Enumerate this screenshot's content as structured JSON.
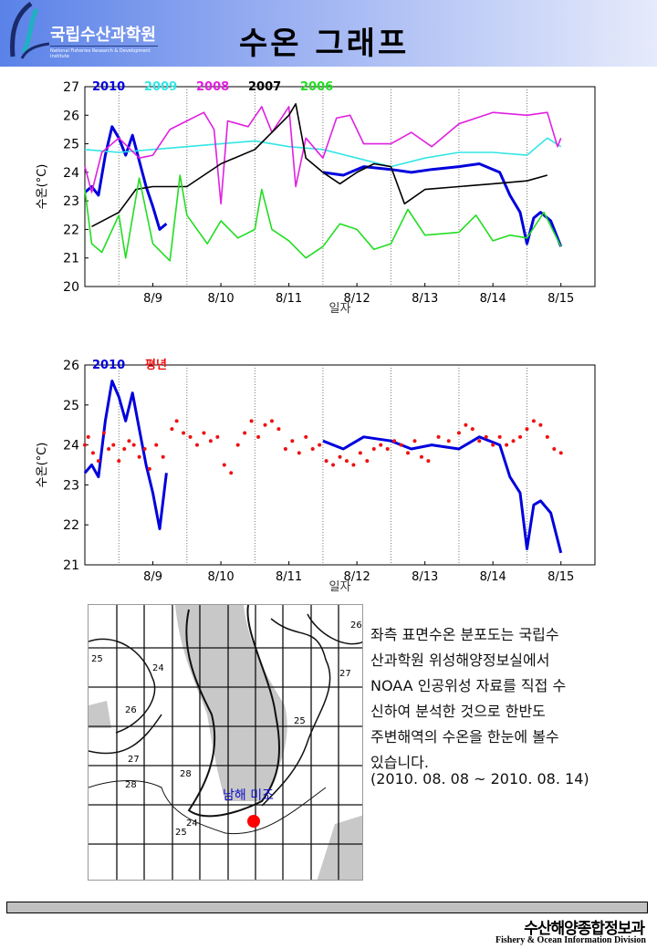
{
  "header": {
    "logo_kr": "국립수산과학원",
    "logo_en": "National Fisheries Research & Development Institute",
    "title": "수온 그래프"
  },
  "chart_data": [
    {
      "type": "line",
      "xlabel": "일자",
      "ylabel": "수온(°C)",
      "ylim": [
        20,
        27
      ],
      "yticks": [
        20,
        21,
        22,
        23,
        24,
        25,
        26,
        27
      ],
      "xticks": [
        "8/9",
        "8/10",
        "8/11",
        "8/12",
        "8/13",
        "8/14",
        "8/15"
      ],
      "grid": "vertical dotted at day boundaries",
      "legend": "top-left",
      "series": [
        {
          "name": "2010",
          "color": "#0000dd",
          "points": [
            [
              8.5,
              23.3
            ],
            [
              8.6,
              23.5
            ],
            [
              8.7,
              23.2
            ],
            [
              8.8,
              24.6
            ],
            [
              8.9,
              25.6
            ],
            [
              9.0,
              25.2
            ],
            [
              9.1,
              24.6
            ],
            [
              9.2,
              25.3
            ],
            [
              9.3,
              24.4
            ],
            [
              9.4,
              23.5
            ],
            [
              9.5,
              22.8
            ],
            [
              9.6,
              22.0
            ],
            [
              9.7,
              22.2
            ],
            null,
            [
              12.0,
              24.0
            ],
            [
              12.3,
              23.9
            ],
            [
              12.6,
              24.2
            ],
            [
              13.0,
              24.1
            ],
            [
              13.3,
              24.0
            ],
            [
              13.6,
              24.1
            ],
            [
              14.0,
              24.2
            ],
            [
              14.3,
              24.3
            ],
            [
              14.6,
              24.0
            ],
            [
              14.75,
              23.2
            ],
            [
              14.9,
              22.6
            ],
            [
              15.0,
              21.5
            ],
            [
              15.1,
              22.4
            ],
            [
              15.2,
              22.6
            ],
            [
              15.35,
              22.3
            ],
            [
              15.5,
              21.4
            ]
          ]
        },
        {
          "name": "2009",
          "color": "#33e5e5",
          "points": [
            [
              8.5,
              24.8
            ],
            [
              9.0,
              24.7
            ],
            [
              9.5,
              24.8
            ],
            [
              10.0,
              24.9
            ],
            [
              10.5,
              25.0
            ],
            [
              11.0,
              25.1
            ],
            [
              11.5,
              24.9
            ],
            [
              12.0,
              24.8
            ],
            [
              12.5,
              24.5
            ],
            [
              13.0,
              24.2
            ],
            [
              13.5,
              24.5
            ],
            [
              14.0,
              24.7
            ],
            [
              14.5,
              24.7
            ],
            [
              15.0,
              24.6
            ],
            [
              15.3,
              25.2
            ],
            [
              15.5,
              24.9
            ]
          ]
        },
        {
          "name": "2008",
          "color": "#e020e0",
          "points": [
            [
              8.5,
              24.2
            ],
            [
              8.6,
              23.3
            ],
            [
              8.75,
              24.7
            ],
            [
              9.0,
              25.2
            ],
            [
              9.3,
              24.5
            ],
            [
              9.5,
              24.6
            ],
            [
              9.75,
              25.5
            ],
            [
              10.0,
              25.8
            ],
            [
              10.25,
              26.1
            ],
            [
              10.4,
              25.5
            ],
            [
              10.5,
              22.9
            ],
            [
              10.6,
              25.8
            ],
            [
              10.9,
              25.6
            ],
            [
              11.1,
              26.3
            ],
            [
              11.25,
              25.4
            ],
            [
              11.5,
              26.3
            ],
            [
              11.6,
              23.5
            ],
            [
              11.75,
              25.2
            ],
            [
              12.0,
              24.5
            ],
            [
              12.2,
              25.9
            ],
            [
              12.4,
              26.0
            ],
            [
              12.6,
              25.0
            ],
            [
              13.0,
              25.0
            ],
            [
              13.3,
              25.4
            ],
            [
              13.6,
              24.9
            ],
            [
              14.0,
              25.7
            ],
            [
              14.5,
              26.1
            ],
            [
              15.0,
              26.0
            ],
            [
              15.3,
              26.1
            ],
            [
              15.45,
              24.9
            ],
            [
              15.5,
              25.2
            ]
          ]
        },
        {
          "name": "2007",
          "color": "#000000",
          "points": [
            [
              8.6,
              22.1
            ],
            [
              9.0,
              22.6
            ],
            [
              9.25,
              23.4
            ],
            [
              9.5,
              23.5
            ],
            [
              10.0,
              23.5
            ],
            [
              10.5,
              24.3
            ],
            [
              11.0,
              24.8
            ],
            [
              11.25,
              25.4
            ],
            [
              11.5,
              26.0
            ],
            [
              11.6,
              26.4
            ],
            [
              11.75,
              24.5
            ],
            [
              12.0,
              24.0
            ],
            [
              12.25,
              23.6
            ],
            [
              12.5,
              24.0
            ],
            [
              12.75,
              24.3
            ],
            [
              13.0,
              24.2
            ],
            [
              13.2,
              22.9
            ],
            [
              13.5,
              23.4
            ],
            [
              14.0,
              23.5
            ],
            [
              14.5,
              23.6
            ],
            [
              15.0,
              23.7
            ],
            [
              15.3,
              23.9
            ]
          ]
        },
        {
          "name": "2006",
          "color": "#22dd22",
          "points": [
            [
              8.5,
              23.4
            ],
            [
              8.6,
              21.5
            ],
            [
              8.75,
              21.2
            ],
            [
              9.0,
              22.5
            ],
            [
              9.1,
              21.0
            ],
            [
              9.3,
              23.8
            ],
            [
              9.5,
              21.5
            ],
            [
              9.75,
              20.9
            ],
            [
              9.9,
              23.9
            ],
            [
              10.0,
              22.5
            ],
            [
              10.3,
              21.5
            ],
            [
              10.5,
              22.3
            ],
            [
              10.75,
              21.7
            ],
            [
              11.0,
              22.0
            ],
            [
              11.1,
              23.4
            ],
            [
              11.25,
              22.0
            ],
            [
              11.5,
              21.6
            ],
            [
              11.75,
              21.0
            ],
            [
              12.0,
              21.4
            ],
            [
              12.25,
              22.2
            ],
            [
              12.5,
              22.0
            ],
            [
              12.75,
              21.3
            ],
            [
              13.0,
              21.5
            ],
            [
              13.25,
              22.7
            ],
            [
              13.5,
              21.8
            ],
            [
              14.0,
              21.9
            ],
            [
              14.25,
              22.5
            ],
            [
              14.5,
              21.6
            ],
            [
              14.75,
              21.8
            ],
            [
              15.0,
              21.7
            ],
            [
              15.25,
              22.6
            ],
            [
              15.5,
              21.4
            ]
          ]
        }
      ]
    },
    {
      "type": "line",
      "xlabel": "일자",
      "ylabel": "수온(°C)",
      "ylim": [
        21,
        26
      ],
      "yticks": [
        21,
        22,
        23,
        24,
        25,
        26
      ],
      "xticks": [
        "8/9",
        "8/10",
        "8/11",
        "8/12",
        "8/13",
        "8/14",
        "8/15"
      ],
      "grid": "vertical dotted at day boundaries",
      "legend": "top-left",
      "series": [
        {
          "name": "2010",
          "color": "#0000dd",
          "style": "line",
          "points": [
            [
              8.5,
              23.3
            ],
            [
              8.6,
              23.5
            ],
            [
              8.7,
              23.2
            ],
            [
              8.8,
              24.6
            ],
            [
              8.9,
              25.6
            ],
            [
              9.0,
              25.2
            ],
            [
              9.1,
              24.6
            ],
            [
              9.2,
              25.3
            ],
            [
              9.3,
              24.4
            ],
            [
              9.4,
              23.5
            ],
            [
              9.5,
              22.8
            ],
            [
              9.6,
              21.9
            ],
            [
              9.7,
              23.3
            ],
            null,
            [
              12.0,
              24.1
            ],
            [
              12.3,
              23.9
            ],
            [
              12.6,
              24.2
            ],
            [
              13.0,
              24.1
            ],
            [
              13.3,
              23.9
            ],
            [
              13.6,
              24.0
            ],
            [
              14.0,
              23.9
            ],
            [
              14.3,
              24.2
            ],
            [
              14.6,
              24.0
            ],
            [
              14.75,
              23.2
            ],
            [
              14.9,
              22.8
            ],
            [
              15.0,
              21.4
            ],
            [
              15.1,
              22.5
            ],
            [
              15.2,
              22.6
            ],
            [
              15.35,
              22.3
            ],
            [
              15.5,
              21.3
            ]
          ]
        },
        {
          "name": "평년",
          "color": "#ee1111",
          "style": "dots",
          "points": [
            [
              8.5,
              24.0
            ],
            [
              8.55,
              24.2
            ],
            [
              8.62,
              23.8
            ],
            [
              8.7,
              23.6
            ],
            [
              8.78,
              24.3
            ],
            [
              8.85,
              23.9
            ],
            [
              8.92,
              24.0
            ],
            [
              9.0,
              23.6
            ],
            [
              9.08,
              23.9
            ],
            [
              9.15,
              24.1
            ],
            [
              9.22,
              24.0
            ],
            [
              9.3,
              23.7
            ],
            [
              9.38,
              23.9
            ],
            [
              9.45,
              23.4
            ],
            [
              9.55,
              24.0
            ],
            [
              9.65,
              23.7
            ],
            [
              9.78,
              24.4
            ],
            [
              9.85,
              24.6
            ],
            [
              9.95,
              24.3
            ],
            [
              10.05,
              24.2
            ],
            [
              10.15,
              24.0
            ],
            [
              10.25,
              24.3
            ],
            [
              10.35,
              24.1
            ],
            [
              10.45,
              24.2
            ],
            [
              10.55,
              23.5
            ],
            [
              10.65,
              23.3
            ],
            [
              10.75,
              24.0
            ],
            [
              10.85,
              24.3
            ],
            [
              10.95,
              24.6
            ],
            [
              11.05,
              24.2
            ],
            [
              11.15,
              24.5
            ],
            [
              11.25,
              24.6
            ],
            [
              11.35,
              24.4
            ],
            [
              11.45,
              23.9
            ],
            [
              11.55,
              24.1
            ],
            [
              11.65,
              23.8
            ],
            [
              11.75,
              24.2
            ],
            [
              11.85,
              23.9
            ],
            [
              11.95,
              24.0
            ],
            [
              12.05,
              23.6
            ],
            [
              12.15,
              23.5
            ],
            [
              12.25,
              23.7
            ],
            [
              12.35,
              23.6
            ],
            [
              12.45,
              23.5
            ],
            [
              12.55,
              23.8
            ],
            [
              12.65,
              23.6
            ],
            [
              12.75,
              23.9
            ],
            [
              12.85,
              24.0
            ],
            [
              12.95,
              23.9
            ],
            [
              13.05,
              24.1
            ],
            [
              13.15,
              24.0
            ],
            [
              13.25,
              23.8
            ],
            [
              13.35,
              24.1
            ],
            [
              13.45,
              23.7
            ],
            [
              13.55,
              23.6
            ],
            [
              13.7,
              24.2
            ],
            [
              13.85,
              24.1
            ],
            [
              14.0,
              24.3
            ],
            [
              14.1,
              24.5
            ],
            [
              14.2,
              24.4
            ],
            [
              14.3,
              24.1
            ],
            [
              14.4,
              24.2
            ],
            [
              14.5,
              24.0
            ],
            [
              14.6,
              24.2
            ],
            [
              14.7,
              24.0
            ],
            [
              14.8,
              24.1
            ],
            [
              14.9,
              24.2
            ],
            [
              15.0,
              24.4
            ],
            [
              15.1,
              24.6
            ],
            [
              15.2,
              24.5
            ],
            [
              15.3,
              24.2
            ],
            [
              15.4,
              23.9
            ],
            [
              15.5,
              23.8
            ]
          ]
        }
      ]
    }
  ],
  "map": {
    "labels": [
      "25",
      "24",
      "26",
      "27",
      "28",
      "28",
      "25",
      "27",
      "26",
      "24",
      "25"
    ],
    "site_label": "남해 미조",
    "site_color": "#ff0000"
  },
  "description": {
    "lines": [
      "좌측 표면수온 분포도는 국립수",
      "산과학원 위성해양정보실에서",
      "NOAA 인공위성 자료를 직접 수",
      "신하여 분석한 것으로  한반도",
      "주변해역의 수온을 한눈에 볼수",
      "있습니다."
    ],
    "date_range": "(2010. 08. 08 ~ 2010. 08. 14)"
  },
  "footer": {
    "org_kr": "수산해양종합정보과",
    "org_en": "Fishery & Ocean Information Division"
  }
}
